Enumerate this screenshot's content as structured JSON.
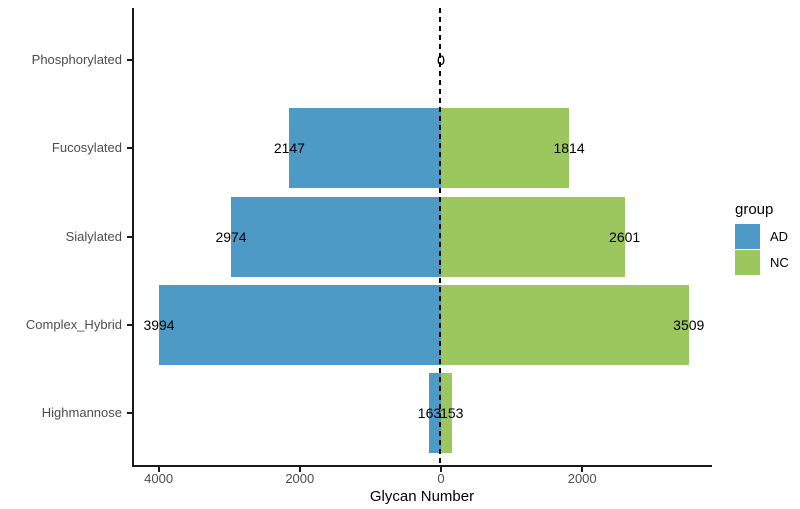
{
  "chart_data": {
    "type": "bar",
    "orientation": "horizontal-diverging",
    "title": "",
    "xlabel": "Glycan Number",
    "ylabel": "",
    "categories": [
      "Phosphorylated",
      "Fucosylated",
      "Sialylated",
      "Complex_Hybrid",
      "Highmannose"
    ],
    "series": [
      {
        "name": "AD",
        "side": "left",
        "color": "#4E9AC6",
        "values": [
          0,
          2147,
          2974,
          3994,
          163
        ]
      },
      {
        "name": "NC",
        "side": "right",
        "color": "#9CC65E",
        "values": [
          0,
          1814,
          2601,
          3509,
          153
        ]
      }
    ],
    "value_labels_shown": true,
    "x_ticks": [
      {
        "value": -4000,
        "label": "4000"
      },
      {
        "value": -2000,
        "label": "2000"
      },
      {
        "value": 0,
        "label": "0"
      },
      {
        "value": 2000,
        "label": "2000"
      }
    ],
    "xlim": [
      -4370,
      3880
    ],
    "grid": false,
    "zero_line": {
      "style": "dashed",
      "color": "#000000"
    },
    "legend": {
      "title": "group",
      "position": "right"
    },
    "colors": {
      "axis_text": "#4d4d4d",
      "axis_line": "#1a1a1a",
      "value_text": "#000000"
    }
  }
}
